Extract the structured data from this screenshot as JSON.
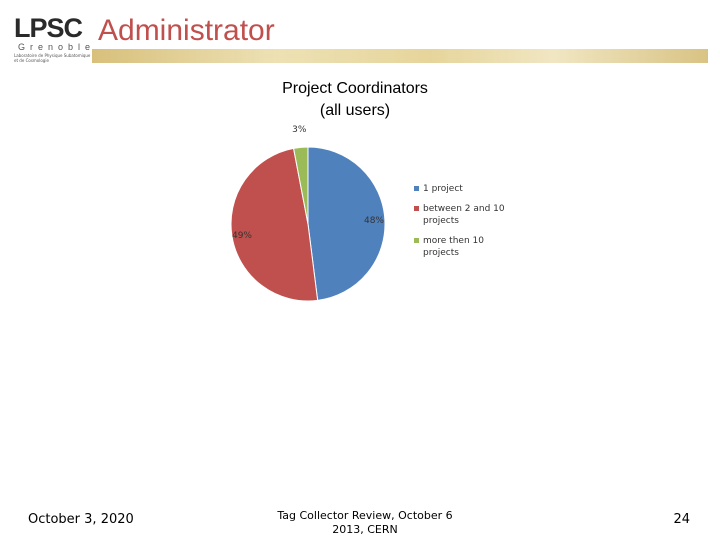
{
  "header": {
    "logo_text": "LPSC",
    "logo_subtitle": "Grenoble",
    "logo_tagline": "Laboratoire de Physique Subatomique et de Cosmologie",
    "title": "Administrator"
  },
  "chart_data": {
    "type": "pie",
    "title": "Project Coordinators\n(all users)",
    "title_lines": [
      "Project Coordinators",
      "(all users)"
    ],
    "slices": [
      {
        "label": "1 project",
        "value": 48,
        "display": "48%",
        "color": "#4f81bd"
      },
      {
        "label": "between 2 and 10 projects",
        "value": 49,
        "display": "49%",
        "color": "#c0504d"
      },
      {
        "label": "more then 10 projects",
        "value": 3,
        "display": "3%",
        "color": "#9bbb59"
      }
    ],
    "legend_position": "right"
  },
  "footer": {
    "date": "October 3, 2020",
    "event": "Tag Collector Review, October 6 2013, CERN",
    "page_number": "24"
  }
}
